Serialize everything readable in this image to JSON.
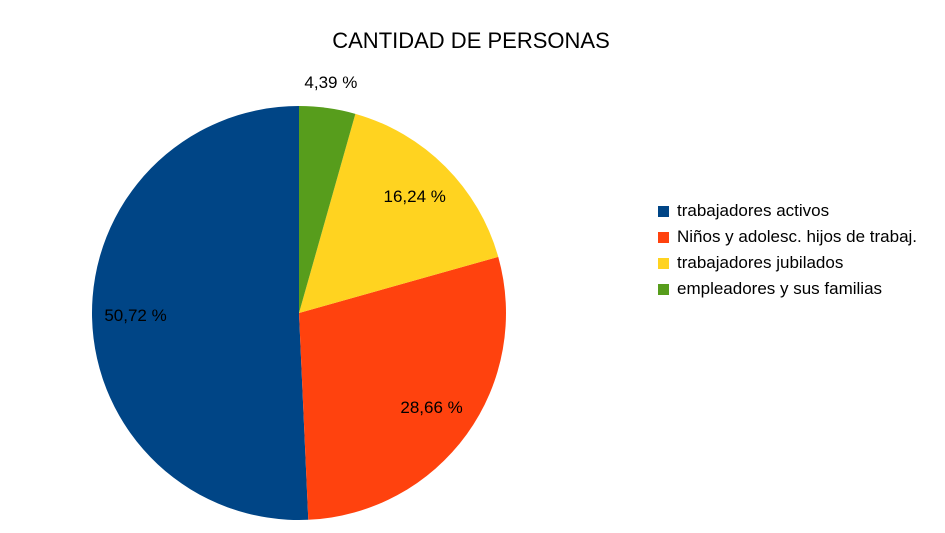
{
  "chart_data": {
    "type": "pie",
    "title": "CANTIDAD DE PERSONAS",
    "categories": [
      "trabajadores activos",
      "Niños y adolesc. hijos de trabaj.",
      "trabajadores jubilados",
      "empleadores y sus familias"
    ],
    "values": [
      50.72,
      28.66,
      16.24,
      4.39
    ],
    "value_labels": [
      "50,72 %",
      "28,66 %",
      "16,24 %",
      "4,39 %"
    ],
    "colors": [
      "#004586",
      "#ff420e",
      "#ffd320",
      "#579d1c"
    ],
    "legend": "right"
  }
}
